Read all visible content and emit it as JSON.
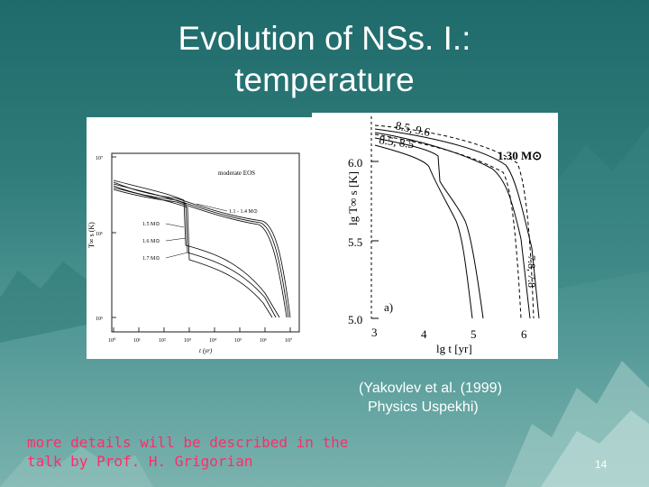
{
  "slide": {
    "title_line1": "Evolution of NSs. I.:",
    "title_line2": "temperature",
    "caption_line1": "(Yakovlev et al. (1999)",
    "caption_line2": "Physics Uspekhi)",
    "note_line1": "more details will be described in the",
    "note_line2": " talk by Prof. H. Grigorian",
    "page_number": "14"
  },
  "colors": {
    "background_top": "#1f6a6a",
    "background_bottom": "#7ab2ae",
    "title": "#ffffff",
    "note": "#ff2c6a"
  },
  "figure_left": {
    "label_eos": "moderate EOS",
    "label_mass_range": "1.1 - 1.4 M⊙",
    "label_m15": "1.5 M⊙",
    "label_m16": "1.6 M⊙",
    "label_m17": "1.7 M⊙",
    "y_axis_label": "T∞ s (K)",
    "x_axis_label": "t (yr)",
    "y_ticks": [
      "10⁷",
      "10⁶",
      "10⁵"
    ],
    "x_ticks": [
      "10⁰",
      "10¹",
      "10²",
      "10³",
      "10⁴",
      "10⁵",
      "10⁶",
      "10⁷"
    ]
  },
  "figure_right": {
    "label_top1": "8.5, 9.6",
    "label_top2": "8.5, 8.5",
    "label_mass": "1.30 M⊙",
    "label_side": "7.8, 7.8",
    "panel_label": "a)",
    "y_axis_label": "lg T∞ s [K]",
    "x_axis_label": "lg t   [yr]",
    "y_ticks": [
      "6.0",
      "5.5",
      "5.0"
    ],
    "x_ticks": [
      "3",
      "4",
      "5",
      "6"
    ]
  }
}
